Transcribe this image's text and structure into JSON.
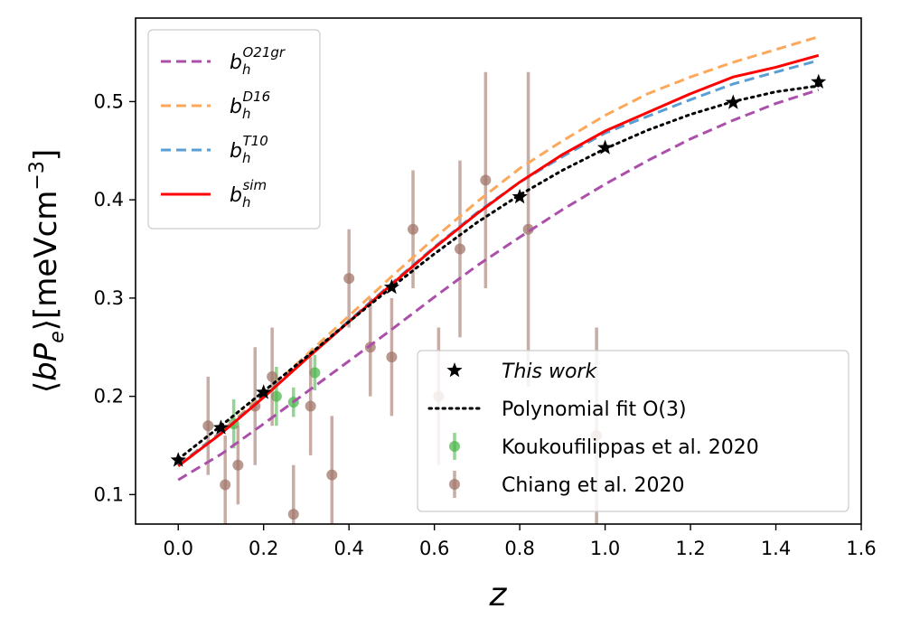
{
  "chart_data": {
    "type": "line",
    "title": "",
    "xlabel": "z",
    "ylabel": "⟨bP_e⟩[meVcm^{-3}]",
    "xlim": [
      -0.1,
      1.6
    ],
    "ylim": [
      0.07,
      0.585
    ],
    "xticks": [
      0.0,
      0.2,
      0.4,
      0.6,
      0.8,
      1.0,
      1.2,
      1.4,
      1.6
    ],
    "xtick_labels": [
      "0.0",
      "0.2",
      "0.4",
      "0.6",
      "0.8",
      "1.0",
      "1.2",
      "1.4",
      "1.6"
    ],
    "yticks": [
      0.1,
      0.2,
      0.3,
      0.4,
      0.5
    ],
    "ytick_labels": [
      "0.1",
      "0.2",
      "0.3",
      "0.4",
      "0.5"
    ],
    "grid": false,
    "series": [
      {
        "name": "O21gr",
        "label_base": "b",
        "label_sub": "h",
        "label_sup": "O21gr",
        "style": "dashed",
        "color": "#ab4fab",
        "legend": "upper-left",
        "x": [
          0.0,
          0.1,
          0.2,
          0.3,
          0.4,
          0.5,
          0.6,
          0.7,
          0.8,
          0.9,
          1.0,
          1.1,
          1.2,
          1.3,
          1.4,
          1.5
        ],
        "y": [
          0.115,
          0.141,
          0.172,
          0.204,
          0.236,
          0.268,
          0.301,
          0.333,
          0.362,
          0.39,
          0.416,
          0.44,
          0.462,
          0.481,
          0.498,
          0.512
        ]
      },
      {
        "name": "D16",
        "label_base": "b",
        "label_sub": "h",
        "label_sup": "D16",
        "style": "dashed",
        "color": "#fca85a",
        "legend": "upper-left",
        "x": [
          0.0,
          0.1,
          0.2,
          0.3,
          0.4,
          0.5,
          0.6,
          0.7,
          0.8,
          0.9,
          1.0,
          1.1,
          1.2,
          1.3,
          1.4,
          1.5
        ],
        "y": [
          0.13,
          0.164,
          0.202,
          0.242,
          0.282,
          0.322,
          0.361,
          0.398,
          0.432,
          0.46,
          0.486,
          0.508,
          0.525,
          0.54,
          0.553,
          0.566
        ]
      },
      {
        "name": "T10",
        "label_base": "b",
        "label_sub": "h",
        "label_sup": "T10",
        "style": "dashed",
        "color": "#5a9ed4",
        "legend": "upper-left",
        "x": [
          0.0,
          0.1,
          0.2,
          0.3,
          0.4,
          0.5,
          0.6,
          0.7,
          0.8,
          0.9,
          1.0,
          1.1,
          1.2,
          1.3,
          1.4,
          1.5
        ],
        "y": [
          0.13,
          0.163,
          0.2,
          0.239,
          0.277,
          0.315,
          0.352,
          0.387,
          0.418,
          0.444,
          0.468,
          0.485,
          0.502,
          0.518,
          0.53,
          0.542
        ]
      },
      {
        "name": "sim",
        "label_base": "b",
        "label_sub": "h",
        "label_sup": "sim",
        "style": "solid",
        "color": "#ff0000",
        "legend": "upper-left",
        "x": [
          0.0,
          0.1,
          0.2,
          0.3,
          0.4,
          0.5,
          0.6,
          0.7,
          0.8,
          0.9,
          1.0,
          1.1,
          1.2,
          1.3,
          1.4,
          1.5
        ],
        "y": [
          0.129,
          0.162,
          0.199,
          0.238,
          0.276,
          0.314,
          0.351,
          0.386,
          0.418,
          0.446,
          0.47,
          0.489,
          0.508,
          0.525,
          0.535,
          0.547
        ]
      },
      {
        "name": "Polynomial fit O(3)",
        "label": "Polynomial fit O(3)",
        "style": "dotted",
        "color": "#000000",
        "legend": "lower-right",
        "x": [
          0.0,
          0.1,
          0.2,
          0.3,
          0.4,
          0.5,
          0.6,
          0.7,
          0.8,
          0.9,
          1.0,
          1.1,
          1.2,
          1.3,
          1.4,
          1.5
        ],
        "y": [
          0.136,
          0.17,
          0.205,
          0.24,
          0.276,
          0.311,
          0.345,
          0.377,
          0.405,
          0.43,
          0.452,
          0.471,
          0.487,
          0.5,
          0.51,
          0.516
        ]
      }
    ],
    "markers": {
      "name": "This work",
      "label": "This work",
      "italic": true,
      "marker": "star",
      "color": "#000000",
      "x": [
        0.0,
        0.1,
        0.2,
        0.5,
        0.8,
        1.0,
        1.3,
        1.5
      ],
      "y": [
        0.135,
        0.168,
        0.204,
        0.311,
        0.403,
        0.453,
        0.499,
        0.52
      ]
    },
    "errorbars": [
      {
        "name": "Koukoufilippas et al. 2020",
        "label": "Koukoufilippas et al. 2020",
        "color": "#4db84d",
        "x": [
          0.13,
          0.23,
          0.27,
          0.32
        ],
        "y": [
          0.172,
          0.2,
          0.194,
          0.224
        ],
        "err": [
          0.025,
          0.03,
          0.015,
          0.018
        ]
      },
      {
        "name": "Chiang et al. 2020",
        "label": "Chiang et al. 2020",
        "color": "#a1776a",
        "x": [
          0.07,
          0.11,
          0.14,
          0.18,
          0.22,
          0.27,
          0.31,
          0.36,
          0.4,
          0.45,
          0.5,
          0.55,
          0.61,
          0.66,
          0.72,
          0.82,
          0.98
        ],
        "y": [
          0.17,
          0.11,
          0.13,
          0.19,
          0.22,
          0.08,
          0.19,
          0.12,
          0.32,
          0.25,
          0.24,
          0.37,
          0.2,
          0.35,
          0.42,
          0.37,
          0.16
        ],
        "err": [
          0.05,
          0.05,
          0.04,
          0.06,
          0.05,
          0.05,
          0.05,
          0.06,
          0.05,
          0.05,
          0.06,
          0.06,
          0.07,
          0.09,
          0.11,
          0.16,
          0.11
        ]
      }
    ],
    "legend_upper_left": [
      "O21gr",
      "D16",
      "T10",
      "sim"
    ],
    "legend_lower_right": [
      "This work",
      "Polynomial fit O(3)",
      "Koukoufilippas et al. 2020",
      "Chiang et al. 2020"
    ]
  }
}
